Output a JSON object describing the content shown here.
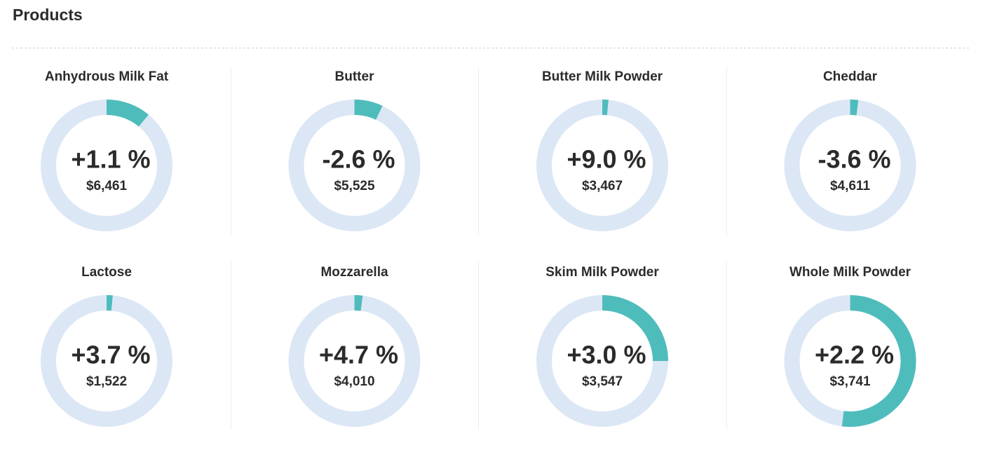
{
  "header": {
    "title": "Products"
  },
  "chart_data": [
    {
      "type": "donut",
      "title": "Anhydrous Milk Fat",
      "center_label": "+1.1 %",
      "sub_label": "$6,461",
      "values": [
        11
      ],
      "ylim": [
        0,
        100
      ],
      "color": "#4fbcbc",
      "track_color": "#dce7f5"
    },
    {
      "type": "donut",
      "title": "Butter",
      "center_label": "-2.6 %",
      "sub_label": "$5,525",
      "values": [
        7
      ],
      "ylim": [
        0,
        100
      ],
      "color": "#4fbcbc",
      "track_color": "#dce7f5"
    },
    {
      "type": "donut",
      "title": "Butter Milk Powder",
      "center_label": "+9.0 %",
      "sub_label": "$3,467",
      "values": [
        1.5
      ],
      "ylim": [
        0,
        100
      ],
      "color": "#4fbcbc",
      "track_color": "#dce7f5"
    },
    {
      "type": "donut",
      "title": "Cheddar",
      "center_label": "-3.6 %",
      "sub_label": "$4,611",
      "values": [
        2
      ],
      "ylim": [
        0,
        100
      ],
      "color": "#4fbcbc",
      "track_color": "#dce7f5"
    },
    {
      "type": "donut",
      "title": "Lactose",
      "center_label": "+3.7 %",
      "sub_label": "$1,522",
      "values": [
        1.5
      ],
      "ylim": [
        0,
        100
      ],
      "color": "#4fbcbc",
      "track_color": "#dce7f5"
    },
    {
      "type": "donut",
      "title": "Mozzarella",
      "center_label": "+4.7 %",
      "sub_label": "$4,010",
      "values": [
        2
      ],
      "ylim": [
        0,
        100
      ],
      "color": "#4fbcbc",
      "track_color": "#dce7f5"
    },
    {
      "type": "donut",
      "title": "Skim Milk Powder",
      "center_label": "+3.0 %",
      "sub_label": "$3,547",
      "values": [
        25
      ],
      "ylim": [
        0,
        100
      ],
      "color": "#4fbcbc",
      "track_color": "#dce7f5"
    },
    {
      "type": "donut",
      "title": "Whole Milk Powder",
      "center_label": "+2.2 %",
      "sub_label": "$3,741",
      "values": [
        52
      ],
      "ylim": [
        0,
        100
      ],
      "color": "#4fbcbc",
      "track_color": "#dce7f5"
    }
  ]
}
